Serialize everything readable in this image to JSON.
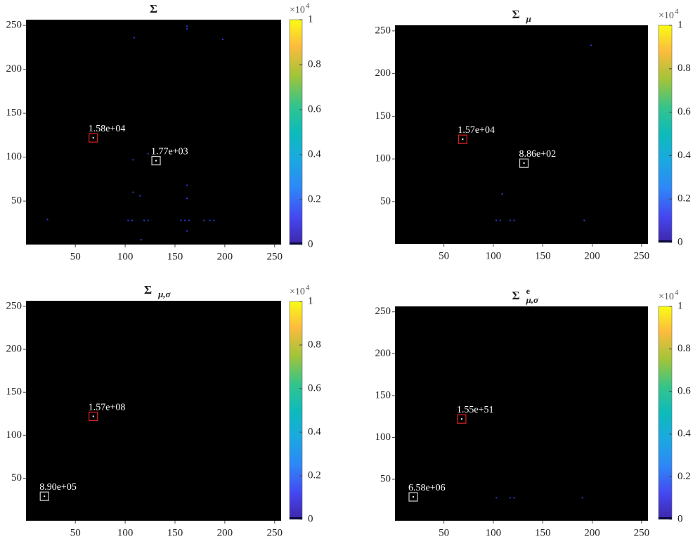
{
  "chart_data": [
    {
      "type": "heatmap",
      "title": "Σ",
      "xlim": [
        0.5,
        256.5
      ],
      "ylim": [
        0.5,
        256.5
      ],
      "xticks": [
        50,
        100,
        150,
        200,
        250
      ],
      "yticks": [
        50,
        100,
        150,
        200,
        250
      ],
      "background": "#000000",
      "point_color": "#2b3bd6",
      "points": {
        "x": [
          162,
          162,
          109,
          198,
          123,
          108,
          108,
          115,
          162,
          162,
          22,
          103,
          107,
          119,
          123,
          156,
          160,
          164,
          179,
          185,
          189,
          162,
          116
        ],
        "y": [
          249,
          246,
          236,
          234,
          104,
          97,
          60,
          56,
          68,
          53,
          29,
          28,
          28,
          28,
          28,
          28,
          28,
          28,
          28,
          28,
          28,
          16,
          6
        ]
      },
      "annotations": [
        {
          "x": 68,
          "y": 122,
          "label": "1.58e+04",
          "color": "#e02020"
        },
        {
          "x": 131,
          "y": 96,
          "label": "1.77e+03",
          "color": "#d0d0d0"
        }
      ],
      "clim": [
        0,
        1
      ],
      "colorbar_ticks": [
        0,
        0.2,
        0.4,
        0.6,
        0.8,
        1
      ],
      "colorbar_label": "×10",
      "colorbar_exponent": "4"
    },
    {
      "type": "heatmap",
      "title": "Σ",
      "title_sub": "μ",
      "xlim": [
        0.5,
        256.5
      ],
      "ylim": [
        0.5,
        256.5
      ],
      "xticks": [
        50,
        100,
        150,
        200,
        250
      ],
      "yticks": [
        50,
        100,
        150,
        200,
        250
      ],
      "background": "#000000",
      "point_color": "#2b3bd6",
      "points": {
        "x": [
          199,
          109,
          103,
          107,
          117,
          121,
          192
        ],
        "y": [
          233,
          59,
          28,
          28,
          28,
          28,
          28
        ]
      },
      "annotations": [
        {
          "x": 69,
          "y": 123,
          "label": "1.57e+04",
          "color": "#e02020"
        },
        {
          "x": 131,
          "y": 95,
          "label": "8.86e+02",
          "color": "#d0d0d0"
        }
      ],
      "clim": [
        0,
        1
      ],
      "colorbar_ticks": [
        0,
        0.2,
        0.4,
        0.6,
        0.8,
        1
      ],
      "colorbar_label": "×10",
      "colorbar_exponent": "4"
    },
    {
      "type": "heatmap",
      "title": "Σ",
      "title_sub": "μ,σ",
      "xlim": [
        0.5,
        256.5
      ],
      "ylim": [
        0.5,
        256.5
      ],
      "xticks": [
        50,
        100,
        150,
        200,
        250
      ],
      "yticks": [
        50,
        100,
        150,
        200,
        250
      ],
      "background": "#000000",
      "point_color": "#2b3bd6",
      "points": {
        "x": [],
        "y": []
      },
      "annotations": [
        {
          "x": 68,
          "y": 122,
          "label": "1.57e+08",
          "color": "#e02020"
        },
        {
          "x": 19,
          "y": 29,
          "label": "8.90e+05",
          "color": "#d0d0d0"
        }
      ],
      "clim": [
        0,
        1
      ],
      "colorbar_ticks": [
        0,
        0.2,
        0.4,
        0.6,
        0.8,
        1
      ],
      "colorbar_label": "×10",
      "colorbar_exponent": "4"
    },
    {
      "type": "heatmap",
      "title": "Σ",
      "title_sup": "e",
      "title_sub": "μ,σ",
      "xlim": [
        0.5,
        256.5
      ],
      "ylim": [
        0.5,
        256.5
      ],
      "xticks": [
        50,
        100,
        150,
        200,
        250
      ],
      "yticks": [
        50,
        100,
        150,
        200,
        250
      ],
      "background": "#000000",
      "point_color": "#2b3bd6",
      "points": {
        "x": [
          103,
          117,
          121,
          190
        ],
        "y": [
          28,
          28,
          28,
          28
        ]
      },
      "annotations": [
        {
          "x": 68,
          "y": 122,
          "label": "1.55e+51",
          "color": "#e02020"
        },
        {
          "x": 19,
          "y": 29,
          "label": "6.58e+06",
          "color": "#d0d0d0"
        }
      ],
      "clim": [
        0,
        1
      ],
      "colorbar_ticks": [
        0,
        0.2,
        0.4,
        0.6,
        0.8,
        1
      ],
      "colorbar_label": "×10",
      "colorbar_exponent": "4"
    }
  ]
}
